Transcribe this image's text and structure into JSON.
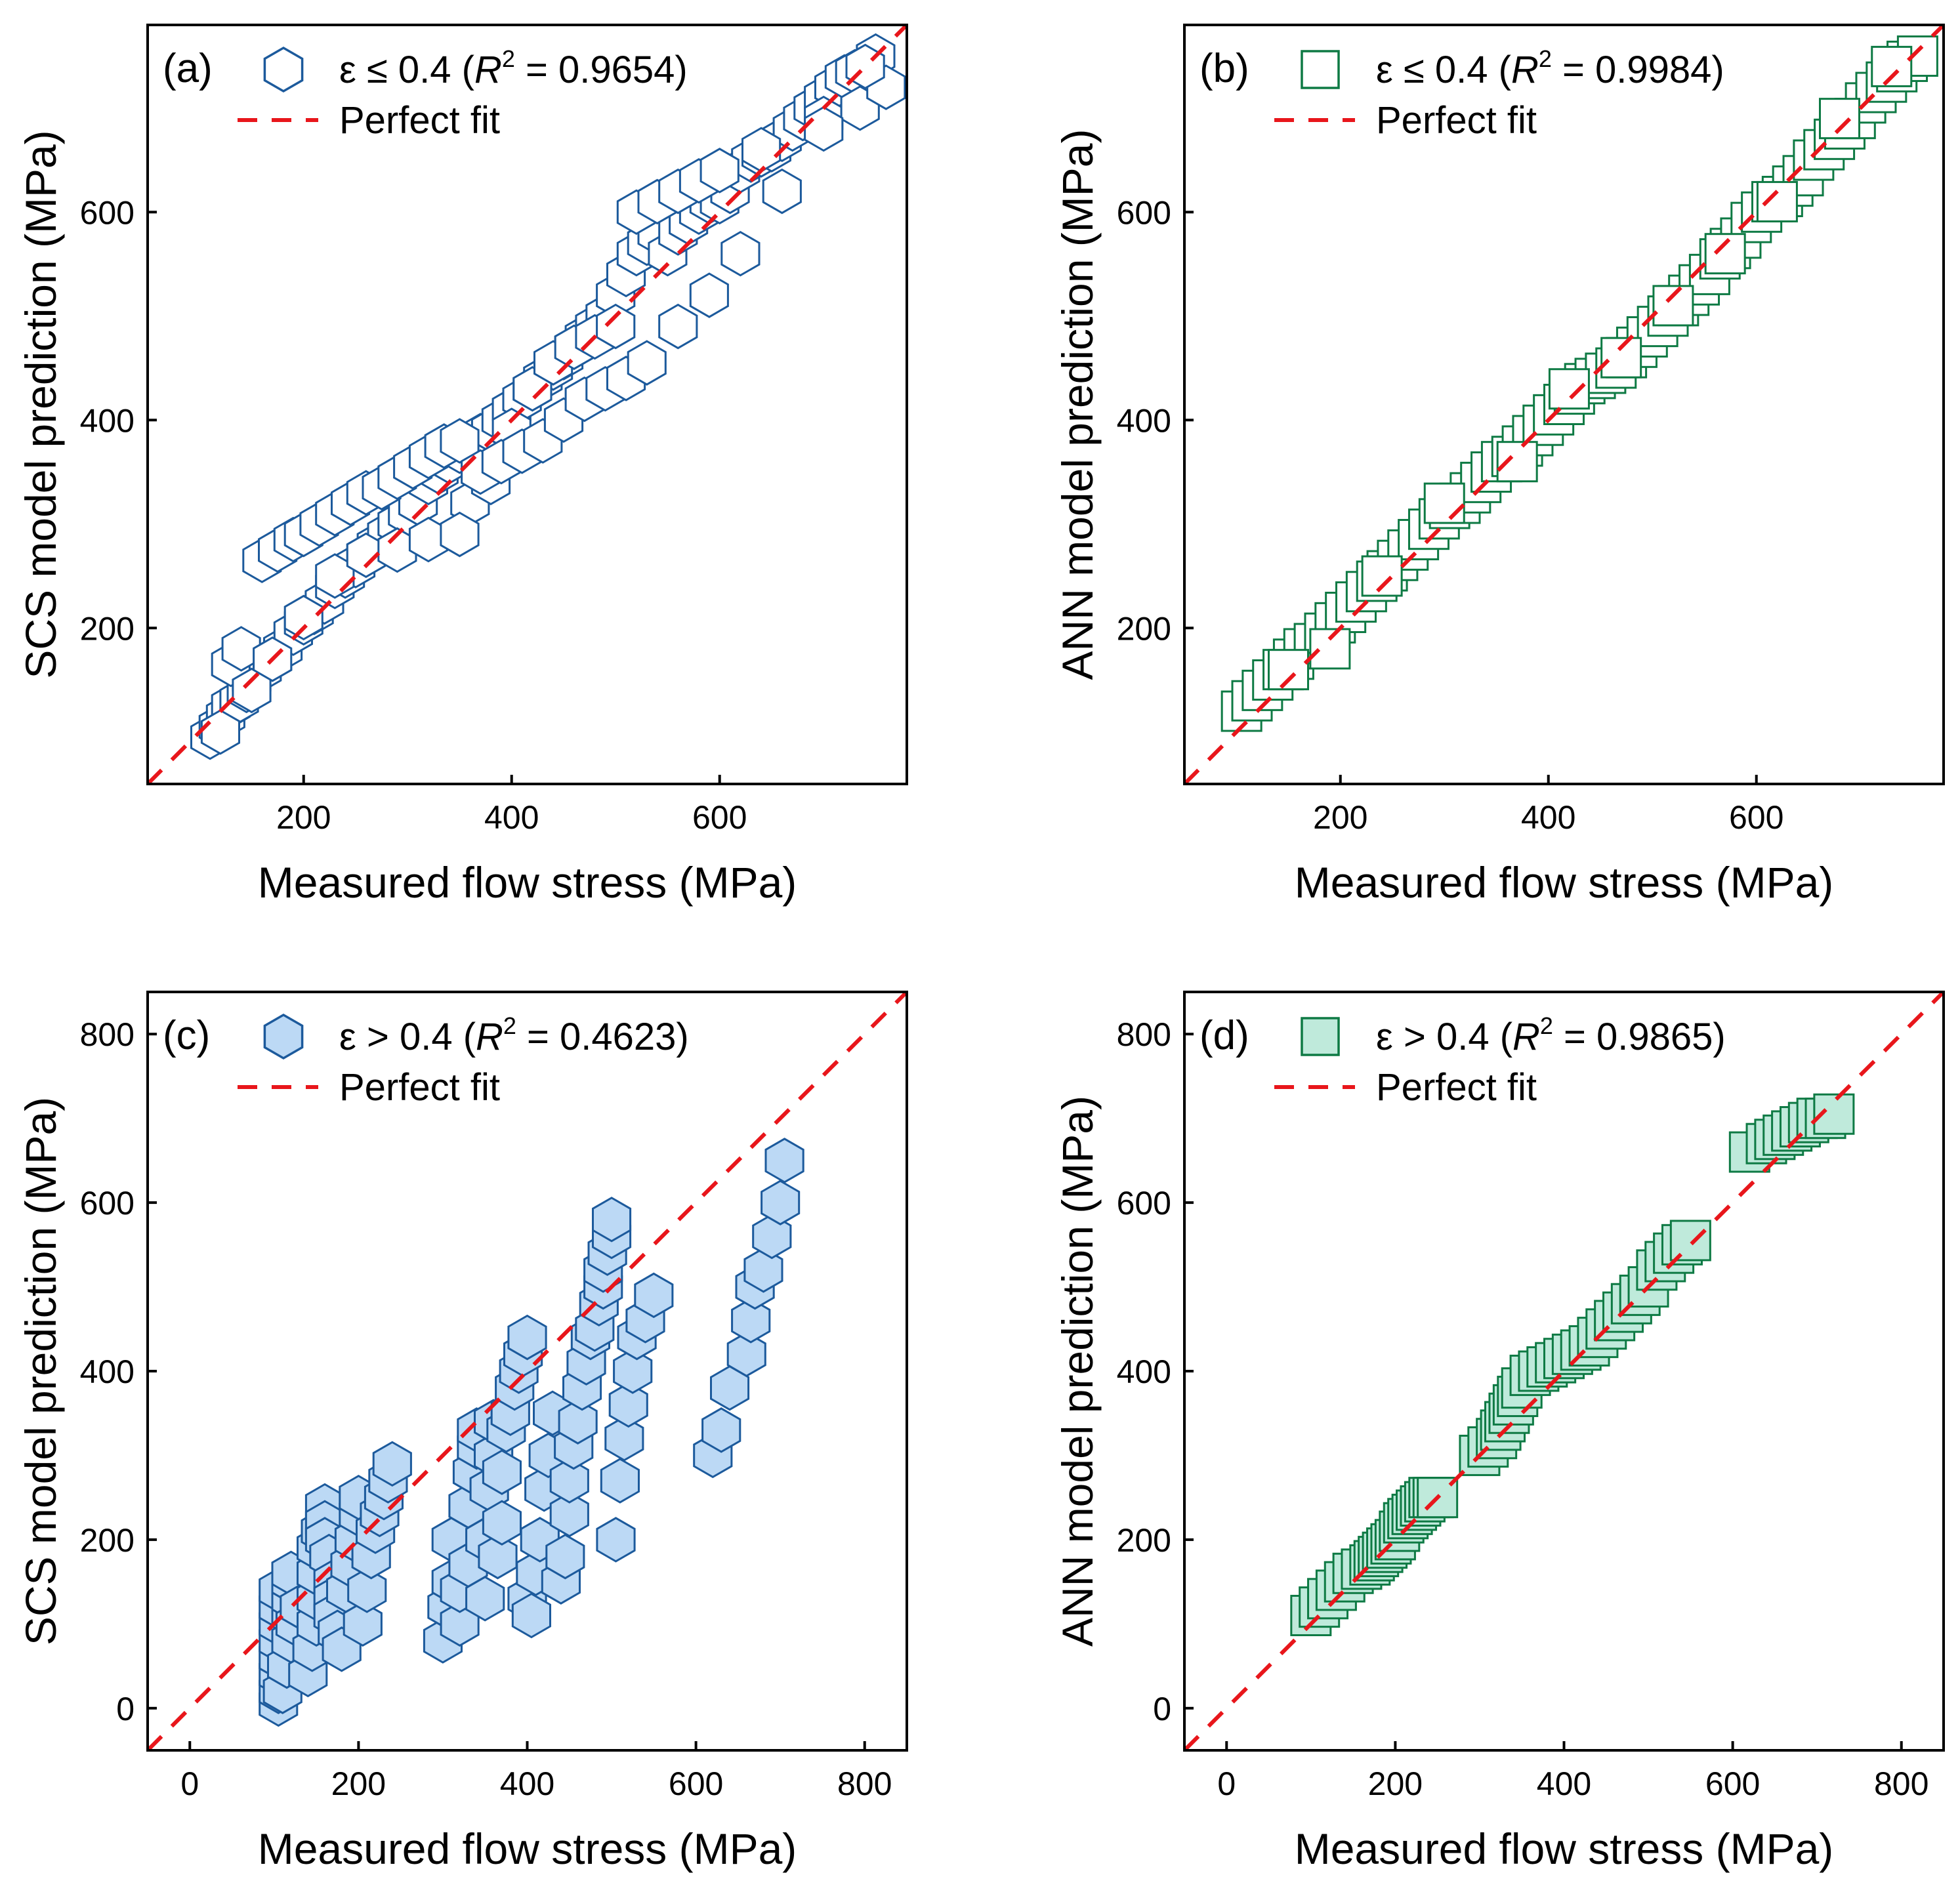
{
  "colors": {
    "hex_stroke": "#1c5a9c",
    "hex_fill": "#bcd9f5",
    "square_stroke": "#0e7a44",
    "square_fill": "#bfeadb",
    "perfect_fit": "#e8161b",
    "axis": "#000000"
  },
  "chart_data": [
    {
      "type": "scatter",
      "panel": "(a)",
      "xlabel": "Measured flow stress (MPa)",
      "ylabel": "SCS model prediction (MPa)",
      "xlim": [
        50,
        780
      ],
      "ylim": [
        50,
        780
      ],
      "xticks": [
        200,
        400,
        600
      ],
      "yticks": [
        200,
        400,
        600
      ],
      "marker": "hexagon",
      "filled": false,
      "legend": {
        "condition": "ε ≤ 0.4 (",
        "r_symbol": "R",
        "r_exponent": "2",
        "r_value": " = 0.9654)",
        "fit_label": "Perfect fit"
      },
      "series": [
        {
          "name": "ε ≤ 0.4",
          "x": [
            110,
            118,
            125,
            130,
            138,
            145,
            150,
            155,
            160,
            170,
            180,
            190,
            200,
            210,
            220,
            230,
            240,
            250,
            260,
            270,
            280,
            290,
            300,
            310,
            320,
            330,
            340,
            350,
            360,
            370,
            380,
            390,
            400,
            410,
            420,
            430,
            440,
            450,
            460,
            470,
            480,
            490,
            500,
            510,
            520,
            530,
            540,
            550,
            560,
            570,
            580,
            590,
            600,
            610,
            620,
            630,
            640,
            650,
            660,
            670,
            680,
            690,
            700,
            710,
            720,
            730,
            740,
            750,
            130,
            140,
            160,
            175,
            190,
            200,
            215,
            230,
            245,
            260,
            275,
            290,
            305,
            320,
            335,
            350,
            360,
            380,
            400,
            420,
            440,
            460,
            480,
            500,
            520,
            540,
            560,
            580,
            600,
            640,
            700,
            735,
            760,
            120,
            150,
            170,
            200,
            230,
            260,
            290,
            320,
            350,
            370,
            390,
            410,
            430,
            450,
            470,
            490,
            510,
            530,
            560,
            590,
            620,
            660,
            700,
            740
          ],
          "y": [
            95,
            105,
            115,
            125,
            130,
            140,
            150,
            160,
            160,
            170,
            180,
            195,
            205,
            215,
            225,
            240,
            250,
            260,
            270,
            280,
            290,
            300,
            310,
            320,
            340,
            350,
            360,
            370,
            375,
            385,
            390,
            400,
            410,
            420,
            430,
            440,
            450,
            460,
            470,
            480,
            490,
            500,
            520,
            540,
            560,
            570,
            580,
            560,
            580,
            590,
            600,
            610,
            610,
            620,
            640,
            650,
            655,
            660,
            670,
            680,
            690,
            700,
            710,
            720,
            730,
            735,
            740,
            750,
            165,
            180,
            265,
            275,
            285,
            290,
            300,
            310,
            320,
            330,
            335,
            345,
            355,
            365,
            375,
            380,
            320,
            340,
            390,
            430,
            455,
            470,
            480,
            490,
            600,
            610,
            620,
            630,
            640,
            660,
            690,
            700,
            720,
            100,
            140,
            170,
            210,
            250,
            270,
            275,
            285,
            290,
            350,
            360,
            370,
            380,
            400,
            420,
            430,
            440,
            455,
            490,
            520,
            560,
            620,
            680,
            740
          ]
        }
      ]
    },
    {
      "type": "scatter",
      "panel": "(b)",
      "xlabel": "Measured flow stress (MPa)",
      "ylabel": "ANN model prediction (MPa)",
      "xlim": [
        50,
        780
      ],
      "ylim": [
        50,
        780
      ],
      "xticks": [
        200,
        400,
        600
      ],
      "yticks": [
        200,
        400,
        600
      ],
      "marker": "square",
      "filled": false,
      "legend": {
        "condition": "ε ≤ 0.4 (",
        "r_symbol": "R",
        "r_exponent": "2",
        "r_value": " = 0.9984)",
        "fit_label": "Perfect fit"
      },
      "series": [
        {
          "name": "ε ≤ 0.4",
          "x": [
            105,
            115,
            125,
            135,
            145,
            155,
            165,
            175,
            185,
            195,
            205,
            215,
            225,
            235,
            245,
            255,
            265,
            275,
            285,
            295,
            305,
            315,
            325,
            335,
            345,
            355,
            365,
            375,
            385,
            395,
            405,
            415,
            425,
            435,
            445,
            455,
            465,
            475,
            485,
            495,
            505,
            515,
            525,
            535,
            545,
            555,
            565,
            575,
            585,
            595,
            605,
            615,
            625,
            635,
            645,
            655,
            665,
            675,
            685,
            695,
            705,
            715,
            725,
            735,
            745,
            755,
            150,
            190,
            240,
            300,
            370,
            420,
            470,
            520,
            570,
            620,
            680,
            730
          ],
          "y": [
            120,
            130,
            140,
            150,
            160,
            170,
            180,
            185,
            195,
            205,
            215,
            225,
            235,
            245,
            255,
            265,
            275,
            285,
            295,
            305,
            315,
            320,
            330,
            340,
            350,
            360,
            365,
            375,
            385,
            395,
            405,
            415,
            425,
            435,
            440,
            445,
            450,
            460,
            470,
            480,
            490,
            500,
            510,
            520,
            530,
            540,
            555,
            565,
            575,
            590,
            600,
            610,
            615,
            625,
            635,
            650,
            660,
            670,
            680,
            690,
            705,
            715,
            725,
            735,
            745,
            750,
            160,
            180,
            250,
            320,
            360,
            430,
            460,
            510,
            560,
            610,
            690,
            740
          ]
        }
      ]
    },
    {
      "type": "scatter",
      "panel": "(c)",
      "xlabel": "Measured flow stress (MPa)",
      "ylabel": "SCS model prediction (MPa)",
      "xlim": [
        -50,
        850
      ],
      "ylim": [
        -50,
        850
      ],
      "xticks": [
        0,
        200,
        400,
        600,
        800
      ],
      "yticks": [
        0,
        200,
        400,
        600,
        800
      ],
      "marker": "hexagon",
      "filled": true,
      "legend": {
        "condition": "ε > 0.4 (",
        "r_symbol": "R",
        "r_exponent": "2",
        "r_value": " = 0.4623)",
        "fit_label": "Perfect fit"
      },
      "series": [
        {
          "name": "ε > 0.4",
          "x": [
            105,
            105,
            105,
            105,
            105,
            105,
            105,
            105,
            110,
            115,
            120,
            120,
            120,
            120,
            120,
            125,
            130,
            140,
            145,
            150,
            150,
            150,
            150,
            155,
            160,
            160,
            160,
            165,
            170,
            170,
            170,
            175,
            180,
            185,
            190,
            195,
            200,
            200,
            205,
            210,
            215,
            220,
            225,
            230,
            235,
            240,
            300,
            305,
            310,
            310,
            320,
            320,
            330,
            330,
            335,
            340,
            340,
            350,
            350,
            355,
            360,
            360,
            365,
            370,
            370,
            375,
            380,
            385,
            390,
            395,
            400,
            400,
            405,
            410,
            415,
            420,
            425,
            430,
            440,
            445,
            450,
            450,
            455,
            460,
            465,
            470,
            475,
            480,
            485,
            490,
            490,
            495,
            500,
            500,
            505,
            510,
            515,
            520,
            525,
            530,
            540,
            550,
            620,
            630,
            640,
            660,
            665,
            670,
            680,
            690,
            700,
            705
          ],
          "y": [
            5,
            20,
            40,
            60,
            80,
            100,
            120,
            140,
            20,
            50,
            80,
            110,
            130,
            150,
            160,
            100,
            120,
            40,
            70,
            100,
            130,
            160,
            190,
            210,
            240,
            220,
            200,
            180,
            150,
            130,
            110,
            90,
            70,
            140,
            170,
            200,
            230,
            250,
            100,
            140,
            180,
            210,
            230,
            250,
            270,
            290,
            80,
            120,
            150,
            200,
            100,
            140,
            170,
            240,
            280,
            310,
            330,
            130,
            200,
            260,
            300,
            340,
            180,
            220,
            280,
            330,
            350,
            380,
            400,
            420,
            440,
            130,
            110,
            160,
            200,
            260,
            300,
            350,
            150,
            180,
            230,
            270,
            310,
            340,
            380,
            410,
            440,
            450,
            480,
            500,
            520,
            540,
            560,
            580,
            200,
            270,
            320,
            360,
            400,
            440,
            460,
            490,
            300,
            330,
            380,
            420,
            460,
            500,
            520,
            560,
            600,
            650
          ]
        }
      ]
    },
    {
      "type": "scatter",
      "panel": "(d)",
      "xlabel": "Measured flow stress (MPa)",
      "ylabel": "ANN model prediction (MPa)",
      "xlim": [
        -50,
        850
      ],
      "ylim": [
        -50,
        850
      ],
      "xticks": [
        0,
        200,
        400,
        600,
        800
      ],
      "yticks": [
        0,
        200,
        400,
        600,
        800
      ],
      "marker": "square",
      "filled": true,
      "legend": {
        "condition": "ε > 0.4 (",
        "r_symbol": "R",
        "r_exponent": "2",
        "r_value": " = 0.9865)",
        "fit_label": "Perfect fit"
      },
      "series": [
        {
          "name": "ε > 0.4",
          "x": [
            100,
            110,
            120,
            130,
            140,
            150,
            160,
            170,
            175,
            180,
            185,
            190,
            195,
            200,
            205,
            210,
            215,
            220,
            225,
            230,
            235,
            240,
            245,
            250,
            300,
            310,
            320,
            325,
            330,
            335,
            340,
            345,
            350,
            360,
            370,
            380,
            390,
            400,
            410,
            420,
            430,
            440,
            450,
            460,
            470,
            480,
            490,
            500,
            510,
            520,
            530,
            540,
            550,
            620,
            640,
            650,
            660,
            670,
            680,
            690,
            700,
            710,
            720
          ],
          "y": [
            110,
            120,
            130,
            140,
            150,
            160,
            165,
            170,
            175,
            180,
            185,
            190,
            195,
            200,
            210,
            220,
            225,
            230,
            235,
            240,
            245,
            250,
            250,
            250,
            300,
            310,
            320,
            330,
            340,
            350,
            360,
            370,
            380,
            395,
            400,
            405,
            410,
            415,
            420,
            425,
            430,
            440,
            450,
            460,
            470,
            480,
            490,
            500,
            520,
            530,
            540,
            550,
            555,
            660,
            670,
            675,
            680,
            685,
            690,
            695,
            700,
            700,
            705
          ]
        }
      ]
    }
  ]
}
